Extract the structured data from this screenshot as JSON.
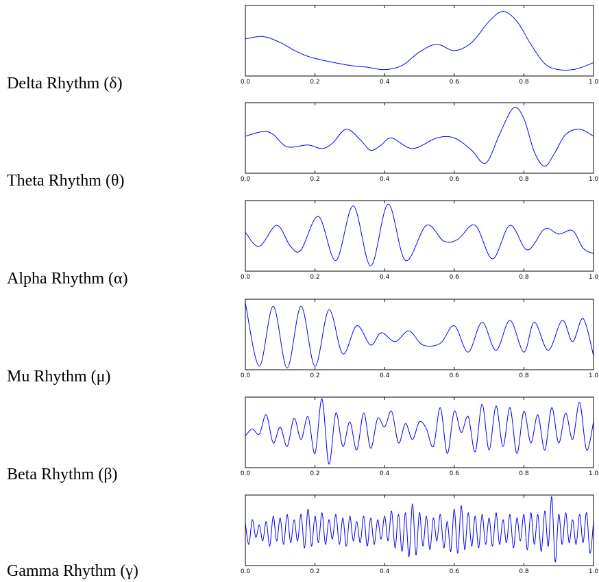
{
  "chart_data": [
    {
      "type": "line",
      "label": "Delta Rhythm (δ)",
      "xlim": [
        0.0,
        1.0
      ],
      "ylim": [
        -1.0,
        1.0
      ],
      "x_ticks": [
        "0.0",
        "0.2",
        "0.4",
        "0.6",
        "0.8",
        "1.0"
      ],
      "line_color": "#0000ff",
      "x": [
        0.0,
        0.05,
        0.1,
        0.15,
        0.2,
        0.3,
        0.35,
        0.4,
        0.45,
        0.5,
        0.55,
        0.6,
        0.65,
        0.7,
        0.74,
        0.78,
        0.82,
        0.86,
        0.9,
        0.95,
        1.0
      ],
      "y": [
        0.05,
        0.12,
        -0.05,
        -0.32,
        -0.5,
        -0.7,
        -0.75,
        -0.82,
        -0.7,
        -0.32,
        -0.1,
        -0.28,
        -0.05,
        0.55,
        0.83,
        0.55,
        -0.1,
        -0.65,
        -0.82,
        -0.8,
        -0.62
      ]
    },
    {
      "type": "line",
      "label": "Theta Rhythm (θ)",
      "xlim": [
        0.0,
        1.0
      ],
      "ylim": [
        -1.0,
        1.0
      ],
      "x_ticks": [
        "0.0",
        "0.2",
        "0.4",
        "0.6",
        "0.8",
        "1.0"
      ],
      "line_color": "#0000ff",
      "x": [
        0.0,
        0.05,
        0.08,
        0.12,
        0.18,
        0.22,
        0.25,
        0.29,
        0.33,
        0.36,
        0.39,
        0.42,
        0.48,
        0.55,
        0.6,
        0.65,
        0.68,
        0.7,
        0.73,
        0.77,
        0.8,
        0.83,
        0.86,
        0.89,
        0.92,
        0.96,
        1.0
      ],
      "y": [
        0.05,
        0.18,
        0.1,
        -0.25,
        -0.2,
        -0.3,
        -0.15,
        0.25,
        -0.05,
        -0.35,
        -0.2,
        0.0,
        -0.3,
        0.0,
        0.0,
        -0.35,
        -0.7,
        -0.6,
        0.1,
        0.85,
        0.55,
        -0.4,
        -0.8,
        -0.4,
        0.1,
        0.25,
        0.05
      ]
    },
    {
      "type": "line",
      "label": "Alpha Rhythm (α)",
      "xlim": [
        0.0,
        1.0
      ],
      "ylim": [
        -1.0,
        1.0
      ],
      "x_ticks": [
        "0.0",
        "0.2",
        "0.4",
        "0.6",
        "0.8",
        "1.0"
      ],
      "line_color": "#0000ff",
      "x": [
        0.0,
        0.04,
        0.09,
        0.13,
        0.16,
        0.21,
        0.26,
        0.31,
        0.36,
        0.41,
        0.46,
        0.52,
        0.57,
        0.61,
        0.66,
        0.71,
        0.76,
        0.81,
        0.86,
        0.9,
        0.94,
        0.97,
        1.0
      ],
      "y": [
        0.1,
        -0.3,
        0.3,
        -0.3,
        -0.4,
        0.55,
        -0.7,
        0.85,
        -0.85,
        0.9,
        -0.7,
        0.3,
        -0.15,
        -0.1,
        0.3,
        -0.65,
        0.3,
        -0.4,
        0.2,
        0.05,
        0.15,
        -0.35,
        -0.5
      ]
    },
    {
      "type": "line",
      "label": "Mu Rhythm (μ)",
      "xlim": [
        0.0,
        1.0
      ],
      "ylim": [
        -1.0,
        1.0
      ],
      "x_ticks": [
        "0.0",
        "0.2",
        "0.4",
        "0.6",
        "0.8",
        "1.0"
      ],
      "line_color": "#0000ff",
      "x": [
        0.0,
        0.04,
        0.08,
        0.12,
        0.16,
        0.2,
        0.24,
        0.28,
        0.32,
        0.36,
        0.39,
        0.43,
        0.47,
        0.51,
        0.56,
        0.6,
        0.64,
        0.68,
        0.72,
        0.76,
        0.8,
        0.83,
        0.87,
        0.91,
        0.94,
        0.97,
        1.0
      ],
      "y": [
        0.9,
        -0.9,
        0.8,
        -0.95,
        0.8,
        -0.9,
        0.7,
        -0.55,
        0.25,
        -0.3,
        0.05,
        -0.2,
        0.1,
        -0.3,
        -0.25,
        0.25,
        -0.5,
        0.35,
        -0.45,
        0.4,
        -0.5,
        0.35,
        -0.45,
        0.4,
        -0.2,
        0.45,
        -0.6
      ]
    },
    {
      "type": "line",
      "label": "Beta Rhythm (β)",
      "xlim": [
        0.0,
        1.0
      ],
      "ylim": [
        -1.0,
        1.0
      ],
      "x_ticks": [
        "0.0",
        "0.2",
        "0.4",
        "0.6",
        "0.8",
        "1.0"
      ],
      "line_color": "#0000ff",
      "x": [
        0.0,
        0.02,
        0.04,
        0.06,
        0.08,
        0.1,
        0.12,
        0.14,
        0.16,
        0.18,
        0.2,
        0.22,
        0.24,
        0.26,
        0.28,
        0.3,
        0.32,
        0.34,
        0.36,
        0.38,
        0.4,
        0.42,
        0.44,
        0.46,
        0.48,
        0.5,
        0.52,
        0.54,
        0.56,
        0.58,
        0.6,
        0.62,
        0.64,
        0.66,
        0.68,
        0.7,
        0.72,
        0.74,
        0.76,
        0.78,
        0.8,
        0.82,
        0.84,
        0.86,
        0.88,
        0.9,
        0.92,
        0.94,
        0.96,
        0.98,
        1.0
      ],
      "y": [
        -0.1,
        0.1,
        -0.05,
        0.5,
        -0.3,
        0.15,
        -0.4,
        0.4,
        -0.2,
        0.45,
        -0.6,
        0.95,
        -0.9,
        0.55,
        -0.4,
        0.3,
        -0.5,
        0.55,
        -0.45,
        0.4,
        0.15,
        0.6,
        -0.3,
        0.25,
        -0.2,
        0.3,
        0.1,
        -0.4,
        0.7,
        -0.6,
        0.6,
        0.0,
        0.45,
        -0.55,
        0.8,
        -0.5,
        0.75,
        -0.4,
        0.7,
        -0.6,
        0.6,
        -0.3,
        0.5,
        -0.5,
        0.7,
        -0.3,
        0.55,
        -0.2,
        0.85,
        -0.5,
        0.3
      ]
    },
    {
      "type": "line",
      "label": "Gamma Rhythm (γ)",
      "xlim": [
        0.0,
        1.0
      ],
      "ylim": [
        -1.0,
        1.0
      ],
      "x_ticks": [
        "0.0",
        "0.2",
        "0.4",
        "0.6",
        "0.8",
        "1.0"
      ],
      "line_color": "#0000ff",
      "x": [
        0.0,
        0.01,
        0.02,
        0.03,
        0.04,
        0.05,
        0.06,
        0.07,
        0.08,
        0.09,
        0.1,
        0.11,
        0.12,
        0.13,
        0.14,
        0.15,
        0.16,
        0.17,
        0.18,
        0.19,
        0.2,
        0.21,
        0.22,
        0.23,
        0.24,
        0.25,
        0.26,
        0.27,
        0.28,
        0.29,
        0.3,
        0.31,
        0.32,
        0.33,
        0.34,
        0.35,
        0.36,
        0.37,
        0.38,
        0.39,
        0.4,
        0.41,
        0.42,
        0.43,
        0.44,
        0.45,
        0.46,
        0.47,
        0.48,
        0.49,
        0.5,
        0.51,
        0.52,
        0.53,
        0.54,
        0.55,
        0.56,
        0.57,
        0.58,
        0.59,
        0.6,
        0.61,
        0.62,
        0.63,
        0.64,
        0.65,
        0.66,
        0.67,
        0.68,
        0.69,
        0.7,
        0.71,
        0.72,
        0.73,
        0.74,
        0.75,
        0.76,
        0.77,
        0.78,
        0.79,
        0.8,
        0.81,
        0.82,
        0.83,
        0.84,
        0.85,
        0.86,
        0.87,
        0.88,
        0.89,
        0.9,
        0.91,
        0.92,
        0.93,
        0.94,
        0.95,
        0.96,
        0.97,
        0.98,
        0.99,
        1.0
      ],
      "y": [
        0.2,
        -0.4,
        0.3,
        -0.2,
        0.15,
        -0.3,
        0.25,
        -0.45,
        0.4,
        -0.3,
        0.35,
        -0.4,
        0.45,
        -0.35,
        0.3,
        -0.3,
        0.45,
        -0.5,
        0.6,
        -0.45,
        0.4,
        -0.35,
        0.5,
        -0.4,
        0.3,
        -0.25,
        0.45,
        -0.4,
        0.35,
        -0.45,
        0.4,
        -0.3,
        0.25,
        -0.35,
        0.4,
        -0.45,
        0.35,
        -0.4,
        0.3,
        -0.25,
        0.4,
        -0.3,
        0.55,
        -0.5,
        0.45,
        -0.6,
        0.5,
        -0.75,
        0.75,
        -0.7,
        0.5,
        -0.45,
        0.4,
        -0.55,
        0.35,
        -0.3,
        0.45,
        -0.5,
        0.25,
        -0.6,
        0.6,
        -0.65,
        0.7,
        -0.55,
        0.5,
        -0.45,
        0.4,
        -0.5,
        0.45,
        -0.4,
        0.35,
        -0.45,
        0.5,
        -0.4,
        0.3,
        -0.35,
        0.45,
        -0.5,
        0.35,
        -0.3,
        0.45,
        -0.55,
        0.5,
        -0.4,
        0.45,
        -0.6,
        0.55,
        -0.45,
        0.95,
        -0.9,
        0.45,
        -0.4,
        0.5,
        -0.35,
        0.3,
        -0.4,
        0.45,
        -0.35,
        0.5,
        -0.65,
        0.25
      ]
    }
  ]
}
